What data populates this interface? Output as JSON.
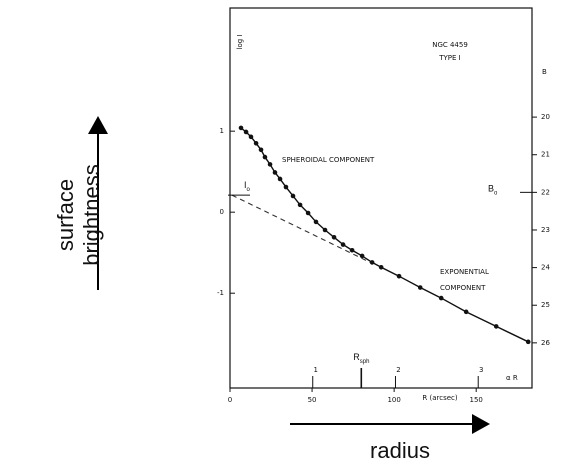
{
  "chart_data": {
    "type": "line",
    "title": "NGC 4459",
    "subtitle": "TYPE I",
    "xlabel": "R (arcsec)",
    "ylabel": "log I",
    "y2label": "B",
    "x2label": "α R",
    "xlim": [
      0,
      184
    ],
    "xticks": [
      0,
      50,
      100,
      150
    ],
    "x2lim": [
      0,
      3.65
    ],
    "x2ticks": [
      1,
      2,
      3
    ],
    "ylim": [
      -2.17,
      2.52
    ],
    "yticks": [
      -1,
      0,
      1
    ],
    "y2lim": [
      17.1,
      27.2
    ],
    "y2_inverted": true,
    "y2ticks": [
      20,
      21,
      22,
      23,
      24,
      25,
      26
    ],
    "series": [
      {
        "color": "#111111",
        "markers": true,
        "x": [
          6.7,
          9.8,
          12.8,
          15.9,
          18.9,
          21.3,
          24.4,
          27.4,
          30.5,
          34.1,
          38.4,
          42.7,
          47.6,
          52.4,
          57.9,
          63.4,
          68.9,
          74.4,
          80.5,
          86.6,
          92.1,
          103.0,
          115.9,
          128.7,
          143.9,
          162.2,
          181.7
        ],
        "values": [
          1.04,
          0.99,
          0.93,
          0.85,
          0.77,
          0.68,
          0.59,
          0.49,
          0.41,
          0.31,
          0.2,
          0.09,
          -0.01,
          -0.12,
          -0.22,
          -0.31,
          -0.4,
          -0.47,
          -0.54,
          -0.62,
          -0.68,
          -0.79,
          -0.93,
          -1.06,
          -1.23,
          -1.41,
          -1.6
        ]
      },
      {
        "color": "#333333",
        "dashed": true,
        "x": [
          1.2,
          85.4
        ],
        "values": [
          0.21,
          -0.62
        ]
      }
    ],
    "annotations": [
      "SPHEROIDAL COMPONENT",
      "EXPONENTIAL",
      "COMPONENT"
    ],
    "i0": {
      "text": "I",
      "sub": "o",
      "value": 0.21
    },
    "b0": {
      "text": "B",
      "sub": "o",
      "value": 22
    },
    "rsph": {
      "text": "R",
      "sub": "sph",
      "value": 80
    }
  },
  "page_labels": {
    "ylabel_1": "surface",
    "ylabel_2": "brightness",
    "xlabel": "radius"
  }
}
